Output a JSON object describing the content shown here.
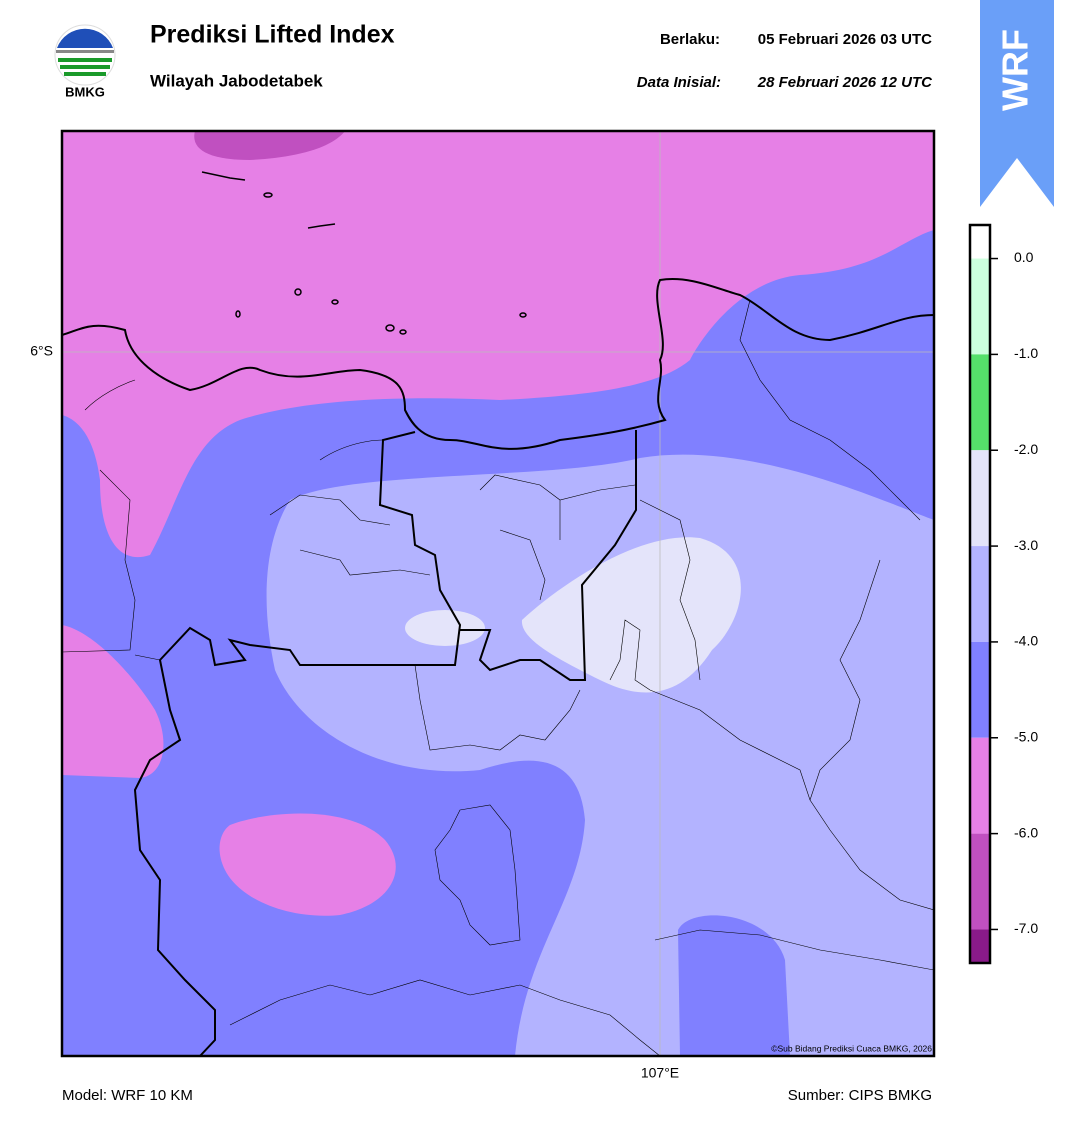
{
  "header": {
    "title": "Prediksi Lifted Index",
    "subtitle": "Wilayah Jabodetabek",
    "valid_label": "Berlaku:",
    "valid_time": "05 Februari 2026 03 UTC",
    "init_label": "Data Inisial:",
    "init_time": "28 Februari 2026 12 UTC",
    "logo_text": "BMKG",
    "badge": "WRF"
  },
  "map": {
    "lat_label": "6°S",
    "lon_label": "107°E",
    "copyright": "©Sub Bidang Prediksi Cuaca BMKG, 2026"
  },
  "colorbar": {
    "lim": [
      -7.35,
      0.35
    ],
    "ticks": [
      {
        "value": 0,
        "label": "0.0"
      },
      {
        "value": -1,
        "label": "-1.0"
      },
      {
        "value": -2,
        "label": "-2.0"
      },
      {
        "value": -3,
        "label": "-3.0"
      },
      {
        "value": -4,
        "label": "-4.0"
      },
      {
        "value": -5,
        "label": "-5.0"
      },
      {
        "value": -6,
        "label": "-6.0"
      },
      {
        "value": -7,
        "label": "-7.0"
      }
    ],
    "colors": [
      "#ffffff",
      "#ccffdd",
      "#55e06a",
      "#e4e4fa",
      "#b3b3ff",
      "#8080ff",
      "#e680e6",
      "#c050c0",
      "#8a1a8a"
    ]
  },
  "footer": {
    "model": "Model: WRF 10 KM",
    "source": "Sumber: CIPS BMKG"
  }
}
